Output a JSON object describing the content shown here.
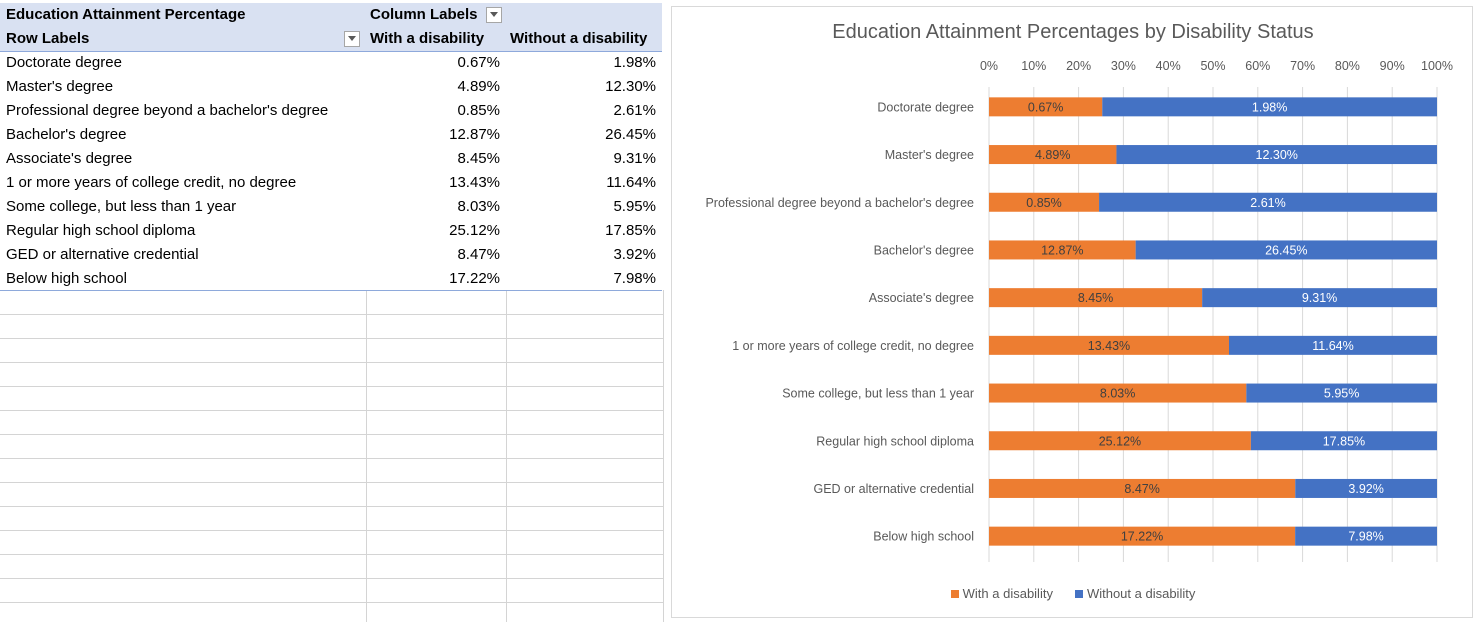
{
  "pivot": {
    "title": "Education Attainment Percentage",
    "column_labels": "Column Labels",
    "row_labels": "Row Labels",
    "col1": "With a disability",
    "col2": "Without a disability",
    "rows": [
      {
        "label": "Doctorate degree",
        "with": "0.67%",
        "without": "1.98%"
      },
      {
        "label": "Master's degree",
        "with": "4.89%",
        "without": "12.30%"
      },
      {
        "label": "Professional degree beyond a bachelor's degree",
        "with": "0.85%",
        "without": "2.61%"
      },
      {
        "label": "Bachelor's degree",
        "with": "12.87%",
        "without": "26.45%"
      },
      {
        "label": "Associate's degree",
        "with": "8.45%",
        "without": "9.31%"
      },
      {
        "label": "1 or more years of college credit, no degree",
        "with": "13.43%",
        "without": "11.64%"
      },
      {
        "label": "Some college, but less than 1 year",
        "with": "8.03%",
        "without": "5.95%"
      },
      {
        "label": "Regular high school diploma",
        "with": "25.12%",
        "without": "17.85%"
      },
      {
        "label": "GED or alternative credential",
        "with": "8.47%",
        "without": "3.92%"
      },
      {
        "label": "Below high school",
        "with": "17.22%",
        "without": "7.98%"
      }
    ]
  },
  "colors": {
    "header_fill": "#d9e1f2",
    "gridline": "#d4d4d4",
    "series_with": "#ed7d31",
    "series_without": "#4472c4",
    "bar_label_dark": "#404040",
    "bar_label_light": "#ffffff"
  },
  "chart_data": {
    "type": "bar",
    "orientation": "horizontal",
    "stacking": "percent",
    "title": "Education Attainment Percentages by Disability Status",
    "categories": [
      "Doctorate degree",
      "Master's degree",
      "Professional degree beyond a bachelor's degree",
      "Bachelor's degree",
      "Associate's degree",
      "1 or more years of college credit, no degree",
      "Some college, but less than 1 year",
      "Regular high school diploma",
      "GED or alternative credential",
      "Below high school"
    ],
    "series": [
      {
        "name": "With a disability",
        "values": [
          0.67,
          4.89,
          0.85,
          12.87,
          8.45,
          13.43,
          8.03,
          25.12,
          8.47,
          17.22
        ],
        "labels": [
          "0.67%",
          "4.89%",
          "0.85%",
          "12.87%",
          "8.45%",
          "13.43%",
          "8.03%",
          "25.12%",
          "8.47%",
          "17.22%"
        ]
      },
      {
        "name": "Without a disability",
        "values": [
          1.98,
          12.3,
          2.61,
          26.45,
          9.31,
          11.64,
          5.95,
          17.85,
          3.92,
          7.98
        ],
        "labels": [
          "1.98%",
          "12.30%",
          "2.61%",
          "26.45%",
          "9.31%",
          "11.64%",
          "5.95%",
          "17.85%",
          "3.92%",
          "7.98%"
        ]
      }
    ],
    "x_ticks": [
      "0%",
      "10%",
      "20%",
      "30%",
      "40%",
      "50%",
      "60%",
      "70%",
      "80%",
      "90%",
      "100%"
    ],
    "xlim": [
      0,
      100
    ],
    "axis_position": "top",
    "grid": true,
    "legend_position": "bottom"
  }
}
